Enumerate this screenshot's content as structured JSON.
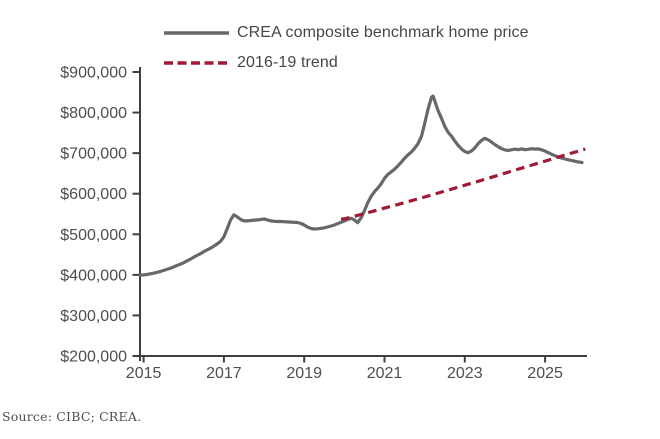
{
  "source_note": "Source: CIBC; CREA.",
  "colors": {
    "benchmark_line": "#66686B",
    "trend_line": "#A01A35",
    "axis": "#3E3F41",
    "tick_text": "#4D4E50",
    "legend_text": "#454648",
    "source_text": "#4B5054",
    "background": "#FFFFFF"
  },
  "chart_data": {
    "type": "line",
    "title": "",
    "xlabel": "",
    "ylabel": "",
    "grid": false,
    "legend_position": "top-left-inside",
    "xlim": [
      2014.9,
      2026.05
    ],
    "ylim": [
      200000,
      900000
    ],
    "x_ticks": [
      {
        "label": "2015",
        "value": 2015
      },
      {
        "label": "2017",
        "value": 2017
      },
      {
        "label": "2019",
        "value": 2019
      },
      {
        "label": "2021",
        "value": 2021
      },
      {
        "label": "2023",
        "value": 2023
      },
      {
        "label": "2025",
        "value": 2025
      }
    ],
    "y_ticks": [
      {
        "label": "$900,000",
        "value": 900000
      },
      {
        "label": "$800,000",
        "value": 800000
      },
      {
        "label": "$700,000",
        "value": 700000
      },
      {
        "label": "$600,000",
        "value": 600000
      },
      {
        "label": "$500,000",
        "value": 500000
      },
      {
        "label": "$400,000",
        "value": 400000
      },
      {
        "label": "$300,000",
        "value": 300000
      },
      {
        "label": "$200,000",
        "value": 200000
      }
    ],
    "series": [
      {
        "name": "CREA composite benchmark home price",
        "style": "solid",
        "color_key": "benchmark_line",
        "points": [
          [
            2014.92,
            399500
          ],
          [
            2015.0,
            400000
          ],
          [
            2015.08,
            401000
          ],
          [
            2015.17,
            402500
          ],
          [
            2015.25,
            404000
          ],
          [
            2015.33,
            406000
          ],
          [
            2015.42,
            408500
          ],
          [
            2015.5,
            411000
          ],
          [
            2015.58,
            413500
          ],
          [
            2015.67,
            416500
          ],
          [
            2015.75,
            419500
          ],
          [
            2015.83,
            423000
          ],
          [
            2015.92,
            426500
          ],
          [
            2016.0,
            430000
          ],
          [
            2016.08,
            434500
          ],
          [
            2016.17,
            439000
          ],
          [
            2016.25,
            443500
          ],
          [
            2016.33,
            448000
          ],
          [
            2016.42,
            452500
          ],
          [
            2016.5,
            457000
          ],
          [
            2016.58,
            461500
          ],
          [
            2016.67,
            466000
          ],
          [
            2016.75,
            471000
          ],
          [
            2016.83,
            476000
          ],
          [
            2016.92,
            483000
          ],
          [
            2017.0,
            494000
          ],
          [
            2017.08,
            513000
          ],
          [
            2017.17,
            536000
          ],
          [
            2017.25,
            548000
          ],
          [
            2017.33,
            543000
          ],
          [
            2017.42,
            536500
          ],
          [
            2017.5,
            533000
          ],
          [
            2017.58,
            533000
          ],
          [
            2017.67,
            534000
          ],
          [
            2017.75,
            535000
          ],
          [
            2017.83,
            535500
          ],
          [
            2017.92,
            536500
          ],
          [
            2018.0,
            538000
          ],
          [
            2018.08,
            535500
          ],
          [
            2018.17,
            533000
          ],
          [
            2018.25,
            532000
          ],
          [
            2018.33,
            531500
          ],
          [
            2018.42,
            531500
          ],
          [
            2018.5,
            531000
          ],
          [
            2018.58,
            530500
          ],
          [
            2018.67,
            530000
          ],
          [
            2018.75,
            529500
          ],
          [
            2018.83,
            529000
          ],
          [
            2018.92,
            526500
          ],
          [
            2019.0,
            523000
          ],
          [
            2019.08,
            518000
          ],
          [
            2019.17,
            514500
          ],
          [
            2019.25,
            513000
          ],
          [
            2019.33,
            513500
          ],
          [
            2019.42,
            514500
          ],
          [
            2019.5,
            516000
          ],
          [
            2019.58,
            518000
          ],
          [
            2019.67,
            520500
          ],
          [
            2019.75,
            523000
          ],
          [
            2019.83,
            526000
          ],
          [
            2019.92,
            529500
          ],
          [
            2020.0,
            533000
          ],
          [
            2020.08,
            536500
          ],
          [
            2020.17,
            539500
          ],
          [
            2020.25,
            535500
          ],
          [
            2020.33,
            528500
          ],
          [
            2020.42,
            541000
          ],
          [
            2020.5,
            558000
          ],
          [
            2020.58,
            577000
          ],
          [
            2020.67,
            594000
          ],
          [
            2020.75,
            605000
          ],
          [
            2020.83,
            613500
          ],
          [
            2020.92,
            625000
          ],
          [
            2021.0,
            638000
          ],
          [
            2021.08,
            647000
          ],
          [
            2021.17,
            654000
          ],
          [
            2021.25,
            660500
          ],
          [
            2021.33,
            668000
          ],
          [
            2021.42,
            678000
          ],
          [
            2021.5,
            687500
          ],
          [
            2021.58,
            695500
          ],
          [
            2021.67,
            703000
          ],
          [
            2021.75,
            712000
          ],
          [
            2021.83,
            722500
          ],
          [
            2021.92,
            741000
          ],
          [
            2022.0,
            772000
          ],
          [
            2022.08,
            807000
          ],
          [
            2022.17,
            838000
          ],
          [
            2022.21,
            840500
          ],
          [
            2022.25,
            829000
          ],
          [
            2022.33,
            806000
          ],
          [
            2022.42,
            786000
          ],
          [
            2022.5,
            766500
          ],
          [
            2022.58,
            752000
          ],
          [
            2022.67,
            741500
          ],
          [
            2022.75,
            730000
          ],
          [
            2022.83,
            719500
          ],
          [
            2022.92,
            710000
          ],
          [
            2023.0,
            704000
          ],
          [
            2023.08,
            701000
          ],
          [
            2023.17,
            705500
          ],
          [
            2023.25,
            713000
          ],
          [
            2023.33,
            723000
          ],
          [
            2023.42,
            732000
          ],
          [
            2023.5,
            736500
          ],
          [
            2023.58,
            733000
          ],
          [
            2023.67,
            727000
          ],
          [
            2023.75,
            721000
          ],
          [
            2023.83,
            716000
          ],
          [
            2023.92,
            711000
          ],
          [
            2024.0,
            708000
          ],
          [
            2024.08,
            706500
          ],
          [
            2024.17,
            708500
          ],
          [
            2024.25,
            710000
          ],
          [
            2024.33,
            708500
          ],
          [
            2024.42,
            710500
          ],
          [
            2024.5,
            708500
          ],
          [
            2024.58,
            709500
          ],
          [
            2024.67,
            711000
          ],
          [
            2024.75,
            710000
          ],
          [
            2024.83,
            710500
          ],
          [
            2024.92,
            708000
          ],
          [
            2025.0,
            705000
          ],
          [
            2025.08,
            701000
          ],
          [
            2025.17,
            697000
          ],
          [
            2025.25,
            693500
          ],
          [
            2025.33,
            690500
          ],
          [
            2025.42,
            687500
          ],
          [
            2025.5,
            685500
          ],
          [
            2025.58,
            683500
          ],
          [
            2025.67,
            681500
          ],
          [
            2025.75,
            680000
          ],
          [
            2025.83,
            678500
          ],
          [
            2025.92,
            677000
          ]
        ]
      },
      {
        "name": "2016-19 trend",
        "style": "dashed",
        "color_key": "trend_line",
        "points": [
          [
            2019.92,
            537500
          ],
          [
            2020.0,
            538000
          ],
          [
            2020.5,
            551000
          ],
          [
            2021.0,
            564500
          ],
          [
            2021.5,
            578000
          ],
          [
            2022.0,
            592000
          ],
          [
            2022.5,
            606500
          ],
          [
            2023.0,
            621000
          ],
          [
            2023.5,
            635500
          ],
          [
            2024.0,
            650500
          ],
          [
            2024.5,
            665500
          ],
          [
            2025.0,
            680500
          ],
          [
            2025.5,
            695500
          ],
          [
            2026.0,
            710000
          ]
        ]
      }
    ]
  }
}
